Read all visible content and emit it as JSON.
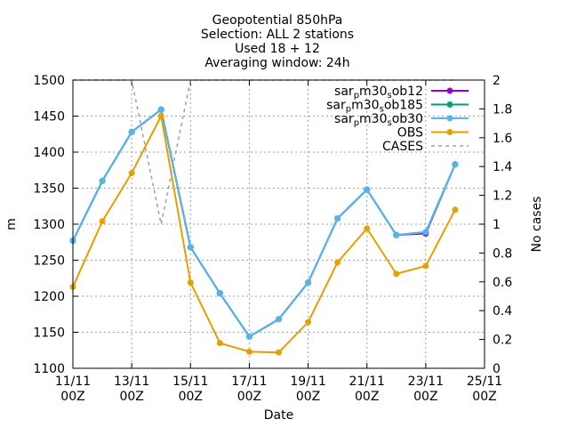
{
  "chart_data": {
    "type": "line",
    "title_lines": [
      "Geopotential 850hPa",
      "Selection: ALL      2 stations",
      "Used 18 + 12",
      "Averaging window: 24h"
    ],
    "xlabel": "Date",
    "ylabel": "m",
    "y2label": "No cases",
    "grid": true,
    "legend_position": "top-right",
    "x_ticks": [
      {
        "x": 0,
        "line1": "11/11",
        "line2": "00Z"
      },
      {
        "x": 2,
        "line1": "13/11",
        "line2": "00Z"
      },
      {
        "x": 4,
        "line1": "15/11",
        "line2": "00Z"
      },
      {
        "x": 6,
        "line1": "17/11",
        "line2": "00Z"
      },
      {
        "x": 8,
        "line1": "19/11",
        "line2": "00Z"
      },
      {
        "x": 10,
        "line1": "21/11",
        "line2": "00Z"
      },
      {
        "x": 12,
        "line1": "23/11",
        "line2": "00Z"
      },
      {
        "x": 14,
        "line1": "25/11",
        "line2": "00Z"
      }
    ],
    "xlim": [
      0,
      14
    ],
    "ylim": [
      1100,
      1500
    ],
    "y_ticks": [
      "1100",
      "1150",
      "1200",
      "1250",
      "1300",
      "1350",
      "1400",
      "1450",
      "1500"
    ],
    "y2lim": [
      0,
      2
    ],
    "y2_ticks": [
      "0",
      "0.2",
      "0.4",
      "0.6",
      "0.8",
      "1",
      "1.2",
      "1.4",
      "1.6",
      "1.8",
      "2"
    ],
    "series": [
      {
        "name_base": "sar",
        "name_sub1": "p",
        "name_mid": "m30",
        "name_sub2": "s",
        "name_tail": "ob12",
        "color": "#9400d3",
        "axis": "y1",
        "x": [
          0,
          1,
          2,
          3,
          4,
          5,
          6,
          7,
          8,
          9,
          10,
          11,
          12,
          13
        ],
        "values": [
          1277,
          1360,
          1428,
          1459,
          1268,
          1204,
          1144,
          1168,
          1219,
          1308,
          1348,
          1285,
          1287,
          1383
        ]
      },
      {
        "name_base": "sar",
        "name_sub1": "p",
        "name_mid": "m30",
        "name_sub2": "s",
        "name_tail": "ob185",
        "color": "#009e73",
        "axis": "y1",
        "x": [
          0,
          1,
          2,
          3,
          4,
          5,
          6,
          7,
          8,
          9,
          10,
          11,
          12,
          13
        ],
        "values": [
          1277,
          1360,
          1428,
          1459,
          1268,
          1204,
          1144,
          1168,
          1219,
          1308,
          1348,
          1285,
          1289,
          1383
        ]
      },
      {
        "name_base": "sar",
        "name_sub1": "p",
        "name_mid": "m30",
        "name_sub2": "s",
        "name_tail": "ob30",
        "color": "#56b4e9",
        "axis": "y1",
        "x": [
          0,
          1,
          2,
          3,
          4,
          5,
          6,
          7,
          8,
          9,
          10,
          11,
          12,
          13
        ],
        "values": [
          1277,
          1360,
          1428,
          1459,
          1268,
          1204,
          1144,
          1168,
          1219,
          1308,
          1348,
          1285,
          1289,
          1383
        ]
      },
      {
        "name_base": "OBS",
        "color": "#e69f00",
        "axis": "y1",
        "x": [
          0,
          1,
          2,
          3,
          4,
          5,
          6,
          7,
          8,
          9,
          10,
          11,
          12,
          13
        ],
        "values": [
          1213,
          1304,
          1371,
          1450,
          1219,
          1135,
          1123,
          1122,
          1164,
          1247,
          1294,
          1231,
          1242,
          1320
        ]
      },
      {
        "name_base": "CASES",
        "color": "#a0a0a0",
        "axis": "y2",
        "dashed": true,
        "x": [
          0,
          1,
          2,
          3,
          4,
          5,
          6,
          7,
          8,
          9,
          10,
          11,
          12,
          13
        ],
        "values": [
          2,
          2,
          2,
          1,
          2,
          2,
          2,
          2,
          2,
          2,
          2,
          2,
          2,
          2
        ]
      }
    ]
  }
}
